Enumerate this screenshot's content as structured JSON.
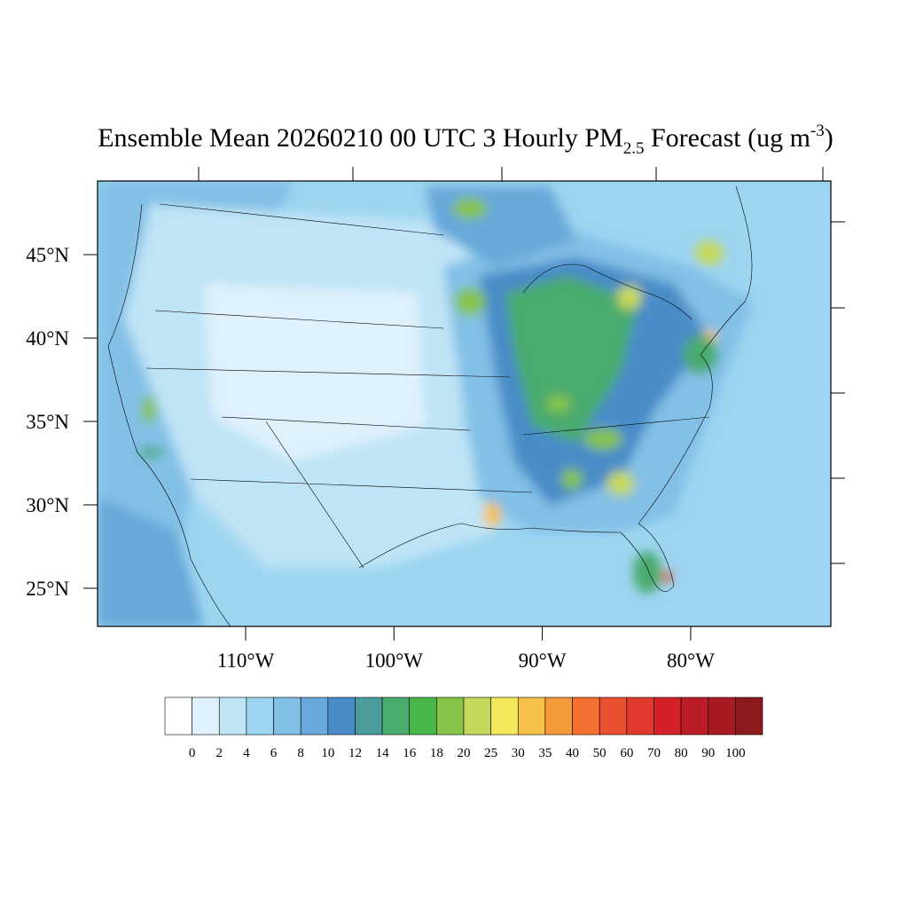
{
  "title": {
    "main": "Ensemble Mean 20260210 00 UTC 3 Hourly PM",
    "subscript": "2.5",
    "middle": " Forecast (ug m",
    "superscript": "-3",
    "end": ")"
  },
  "map": {
    "lat_ticks": [
      {
        "value": 25,
        "label": "25°N"
      },
      {
        "value": 30,
        "label": "30°N"
      },
      {
        "value": 35,
        "label": "35°N"
      },
      {
        "value": 40,
        "label": "40°N"
      },
      {
        "value": 45,
        "label": "45°N"
      }
    ],
    "lon_ticks": [
      {
        "value": 110,
        "label": "110°W"
      },
      {
        "value": 100,
        "label": "100°W"
      },
      {
        "value": 90,
        "label": "90°W"
      },
      {
        "value": 80,
        "label": "80°W"
      }
    ]
  },
  "colorbar": {
    "levels": [
      0,
      2,
      4,
      6,
      8,
      10,
      12,
      14,
      16,
      18,
      20,
      25,
      30,
      35,
      40,
      50,
      60,
      70,
      80,
      90,
      100
    ],
    "colors": [
      "#ffffff",
      "#dff1fb",
      "#bfe4f6",
      "#9dd5f1",
      "#82c0e6",
      "#68a8da",
      "#4a8cc8",
      "#4a9c9c",
      "#4aab6e",
      "#48b648",
      "#86c44a",
      "#c6d85a",
      "#f5e85a",
      "#f7c048",
      "#f59a3a",
      "#f37030",
      "#e85030",
      "#e03a2c",
      "#d42028",
      "#bc1c26",
      "#a81a22",
      "#8c1a1c"
    ]
  }
}
